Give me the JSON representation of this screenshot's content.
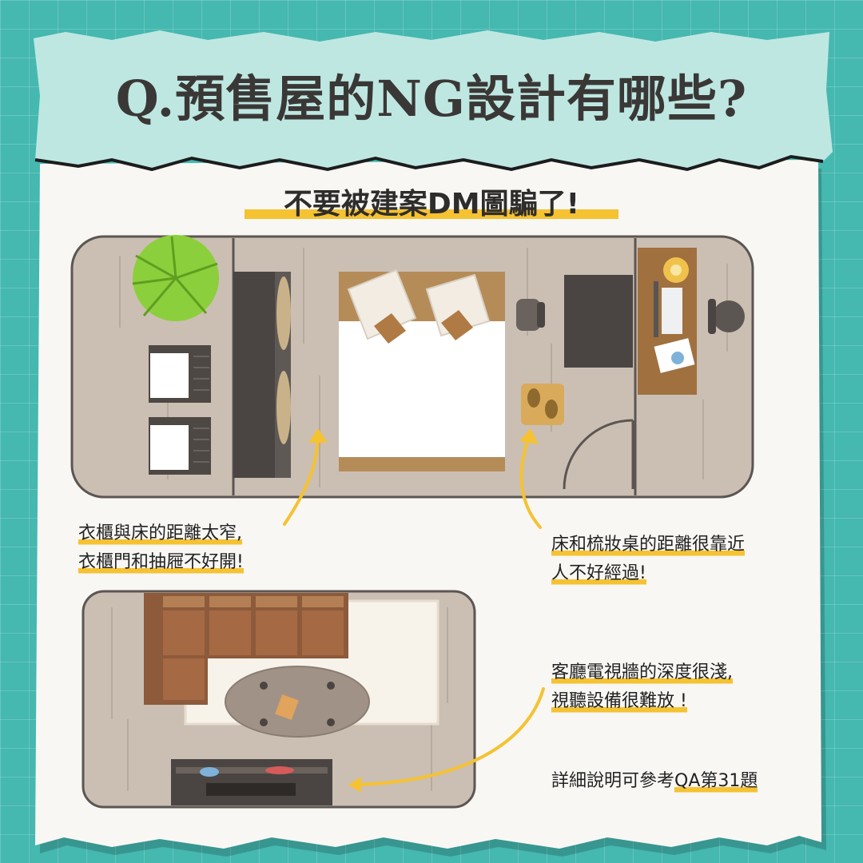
{
  "title": "Q.預售屋的NG設計有哪些?",
  "subtitle": "不要被建案DM圖騙了!",
  "notes": {
    "wardrobe": {
      "line1": "衣櫃與床的距離太窄,",
      "line2": "衣櫃門和抽屜不好開!"
    },
    "vanity": {
      "line1": "床和梳妝桌的距離很靠近",
      "line2": "人不好經過!"
    },
    "tv_wall": {
      "line1": "客廳電視牆的深度很淺,",
      "line2": "視聽設備很難放 !"
    },
    "reference": {
      "prefix": "詳細說明可參考",
      "highlight": "QA第31題"
    }
  },
  "colors": {
    "floor": "#cbbfb4",
    "wall": "#5c5652",
    "bed_frame": "#b58c57",
    "sofa": "#8d5a3b",
    "desk": "#a0703f",
    "accent": "#f5c232",
    "background": "#45b8b0",
    "tape": "#bfe7e2"
  }
}
